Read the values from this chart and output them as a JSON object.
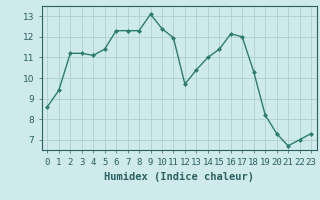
{
  "x": [
    0,
    1,
    2,
    3,
    4,
    5,
    6,
    7,
    8,
    9,
    10,
    11,
    12,
    13,
    14,
    15,
    16,
    17,
    18,
    19,
    20,
    21,
    22,
    23
  ],
  "y": [
    8.6,
    9.4,
    11.2,
    11.2,
    11.1,
    11.4,
    12.3,
    12.3,
    12.3,
    13.1,
    12.4,
    11.95,
    9.7,
    10.4,
    11.0,
    11.4,
    12.15,
    12.0,
    10.3,
    8.2,
    7.3,
    6.7,
    7.0,
    7.3
  ],
  "xlabel": "Humidex (Indice chaleur)",
  "ylim": [
    6.5,
    13.5
  ],
  "xlim": [
    -0.5,
    23.5
  ],
  "yticks": [
    7,
    8,
    9,
    10,
    11,
    12,
    13
  ],
  "xtick_labels": [
    "0",
    "1",
    "2",
    "3",
    "4",
    "5",
    "6",
    "7",
    "8",
    "9",
    "10",
    "11",
    "12",
    "13",
    "14",
    "15",
    "16",
    "17",
    "18",
    "19",
    "20",
    "21",
    "22",
    "23"
  ],
  "line_color": "#2d7d6e",
  "marker": "D",
  "marker_size": 2.0,
  "bg_color": "#ceeaea",
  "grid_color": "#b0cfcf",
  "axis_bg": "#ceeaea",
  "xlabel_fontsize": 7.5,
  "tick_fontsize": 6.5,
  "linewidth": 1.0
}
